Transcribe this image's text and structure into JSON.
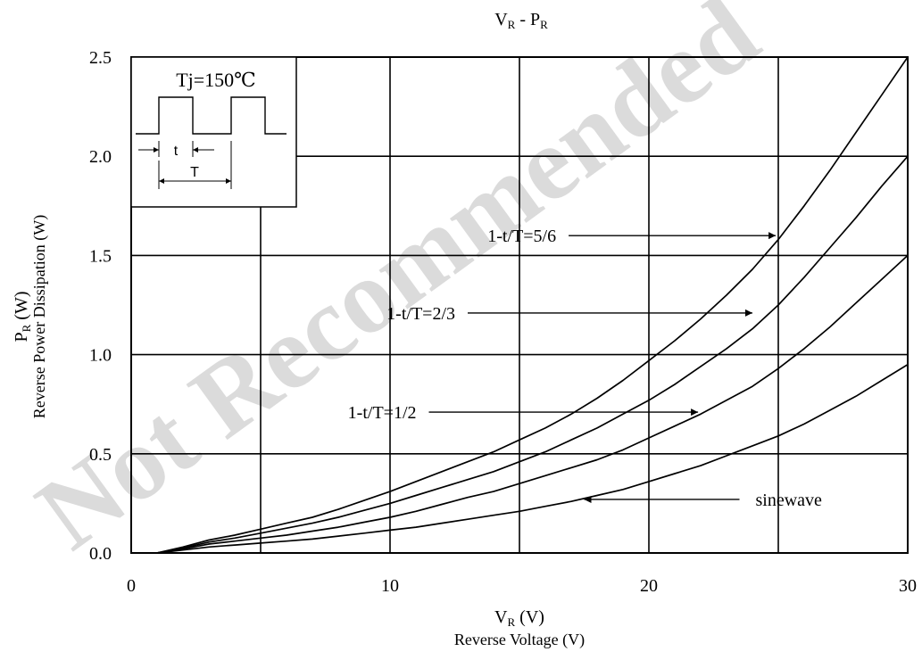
{
  "chart_data": {
    "type": "line",
    "title_base": "V",
    "title_sub1": "R",
    "title_mid": " - P",
    "title_sub2": "R",
    "xlabel_main": "V",
    "xlabel_sub": "R",
    "xlabel_unit": " (V)",
    "xlabel_desc": "Reverse Voltage (V)",
    "ylabel_main": "P",
    "ylabel_sub": "R",
    "ylabel_unit": " (W)",
    "ylabel_desc": "Reverse Power Dissipation (W)",
    "xlim": [
      0,
      30
    ],
    "ylim": [
      0,
      2.5
    ],
    "xticks": [
      0,
      10,
      20,
      30
    ],
    "xtick_labels": [
      "0",
      "10",
      "20",
      "30"
    ],
    "yticks": [
      0,
      0.5,
      1.0,
      1.5,
      2.0,
      2.5
    ],
    "ytick_labels": [
      "0.0",
      "0.5",
      "1.0",
      "1.5",
      "2.0",
      "2.5"
    ],
    "grid_x": [
      5,
      10,
      15,
      20,
      25
    ],
    "grid_y": [
      0.5,
      1.0,
      1.5,
      2.0
    ],
    "series": [
      {
        "name": "1-t/T=5/6",
        "x": [
          1.0,
          2.0,
          3.0,
          4.0,
          5.0,
          6.0,
          7.0,
          8.0,
          9.0,
          10.0,
          11.0,
          12.0,
          13.0,
          14.0,
          15.0,
          16.0,
          17.0,
          18.0,
          19.0,
          20.0,
          21.0,
          22.0,
          23.0,
          24.0,
          25.0,
          26.0,
          27.0,
          28.0,
          29.0,
          30.0
        ],
        "y": [
          0.0,
          0.03,
          0.065,
          0.09,
          0.12,
          0.15,
          0.18,
          0.22,
          0.265,
          0.31,
          0.36,
          0.41,
          0.46,
          0.51,
          0.57,
          0.63,
          0.7,
          0.78,
          0.87,
          0.97,
          1.07,
          1.18,
          1.3,
          1.43,
          1.58,
          1.75,
          1.93,
          2.12,
          2.31,
          2.5
        ]
      },
      {
        "name": "1-t/T=2/3",
        "x": [
          1.0,
          2.0,
          3.0,
          4.0,
          5.0,
          6.0,
          7.0,
          8.0,
          9.0,
          10.0,
          11.0,
          12.0,
          13.0,
          14.0,
          15.0,
          16.0,
          17.0,
          18.0,
          19.0,
          20.0,
          21.0,
          22.0,
          23.0,
          24.0,
          25.0,
          26.0,
          27.0,
          28.0,
          29.0,
          30.0
        ],
        "y": [
          0.0,
          0.025,
          0.055,
          0.075,
          0.1,
          0.125,
          0.15,
          0.18,
          0.215,
          0.25,
          0.29,
          0.33,
          0.37,
          0.41,
          0.46,
          0.51,
          0.57,
          0.63,
          0.7,
          0.77,
          0.85,
          0.94,
          1.03,
          1.13,
          1.25,
          1.39,
          1.54,
          1.69,
          1.85,
          2.0
        ]
      },
      {
        "name": "1-t/T=1/2",
        "x": [
          1.0,
          2.0,
          3.0,
          4.0,
          5.0,
          6.0,
          7.0,
          8.0,
          9.0,
          10.0,
          11.0,
          12.0,
          13.0,
          14.0,
          15.0,
          16.0,
          17.0,
          18.0,
          19.0,
          20.0,
          21.0,
          22.0,
          23.0,
          24.0,
          25.0,
          26.0,
          27.0,
          28.0,
          29.0,
          30.0
        ],
        "y": [
          0.0,
          0.02,
          0.045,
          0.06,
          0.075,
          0.09,
          0.11,
          0.13,
          0.155,
          0.18,
          0.21,
          0.245,
          0.28,
          0.31,
          0.35,
          0.39,
          0.43,
          0.47,
          0.52,
          0.58,
          0.64,
          0.7,
          0.77,
          0.84,
          0.93,
          1.03,
          1.14,
          1.26,
          1.38,
          1.5
        ]
      },
      {
        "name": "sinewave",
        "x": [
          1.0,
          2.0,
          3.0,
          4.0,
          5.0,
          6.0,
          7.0,
          8.0,
          9.0,
          10.0,
          11.0,
          12.0,
          13.0,
          14.0,
          15.0,
          16.0,
          17.0,
          18.0,
          19.0,
          20.0,
          21.0,
          22.0,
          23.0,
          24.0,
          25.0,
          26.0,
          27.0,
          28.0,
          29.0,
          30.0
        ],
        "y": [
          0.0,
          0.015,
          0.03,
          0.04,
          0.05,
          0.06,
          0.07,
          0.085,
          0.1,
          0.115,
          0.13,
          0.15,
          0.17,
          0.19,
          0.21,
          0.235,
          0.26,
          0.29,
          0.32,
          0.36,
          0.4,
          0.44,
          0.49,
          0.54,
          0.59,
          0.65,
          0.72,
          0.79,
          0.87,
          0.95
        ]
      }
    ],
    "annotations": [
      {
        "text": "1-t/T=5/6",
        "arrow_from_x": 16.9,
        "arrow_to_x": 24.9,
        "y": 1.6
      },
      {
        "text": "1-t/T=2/3",
        "arrow_from_x": 13.0,
        "arrow_to_x": 24.0,
        "y": 1.21
      },
      {
        "text": "1-t/T=1/2",
        "arrow_from_x": 11.5,
        "arrow_to_x": 21.9,
        "y": 0.71
      },
      {
        "text": "sinewave",
        "arrow_from_x": 23.5,
        "arrow_to_x": 17.5,
        "y": 0.27
      }
    ],
    "inset": {
      "condition": "Tj=150℃",
      "t_label": "t",
      "T_label": "T"
    },
    "watermark": "Not Recommended"
  }
}
